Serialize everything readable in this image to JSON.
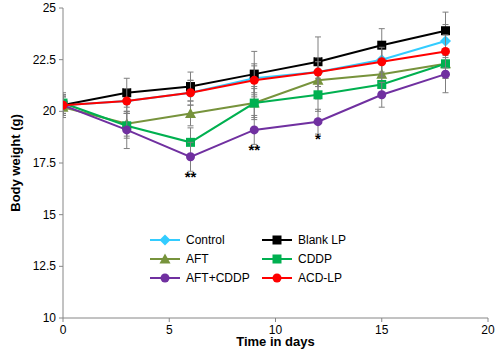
{
  "chart_data": {
    "type": "line",
    "x_label": "Time in days",
    "y_label": "Body weight (g)",
    "x": [
      0,
      3,
      6,
      9,
      12,
      15,
      18
    ],
    "xlim": [
      0,
      20
    ],
    "xticks": [
      0,
      5,
      10,
      15,
      20
    ],
    "ylim": [
      10,
      25
    ],
    "yticks": [
      10,
      12.5,
      15,
      17.5,
      20,
      22.5,
      25
    ],
    "grid": false,
    "legend": "bottom",
    "series": [
      {
        "name": "Control",
        "color": "#33ccff",
        "marker": "diamond",
        "values": [
          20.3,
          20.5,
          20.9,
          21.6,
          21.9,
          22.5,
          23.4
        ],
        "errors": [
          0.5,
          0.6,
          0.6,
          0.7,
          0.7,
          0.7,
          0.8
        ]
      },
      {
        "name": "Blank LP",
        "color": "#000000",
        "marker": "square",
        "values": [
          20.3,
          20.9,
          21.2,
          21.8,
          22.4,
          23.2,
          23.9
        ],
        "errors": [
          0.5,
          0.7,
          0.7,
          1.1,
          1.2,
          0.8,
          0.9
        ]
      },
      {
        "name": "AFT",
        "color": "#77933c",
        "marker": "triangle",
        "values": [
          20.2,
          19.4,
          19.9,
          20.4,
          21.5,
          21.8,
          22.3
        ],
        "errors": [
          0.5,
          0.6,
          0.6,
          0.8,
          0.9,
          0.6,
          0.7
        ]
      },
      {
        "name": "CDDP",
        "color": "#00b050",
        "marker": "square",
        "values": [
          20.4,
          19.3,
          18.5,
          20.4,
          20.8,
          21.3,
          22.3
        ],
        "errors": [
          0.5,
          0.6,
          0.7,
          0.7,
          0.8,
          0.6,
          0.7
        ]
      },
      {
        "name": "AFT+CDDP",
        "color": "#7030a0",
        "marker": "circle",
        "values": [
          20.3,
          19.1,
          17.8,
          19.1,
          19.5,
          20.8,
          21.8
        ],
        "errors": [
          0.5,
          0.9,
          0.7,
          0.7,
          0.6,
          0.6,
          0.9
        ]
      },
      {
        "name": "ACD-LP",
        "color": "#ff0000",
        "marker": "circle",
        "values": [
          20.3,
          20.5,
          20.9,
          21.5,
          21.9,
          22.4,
          22.9
        ],
        "errors": [
          0.4,
          0.6,
          0.6,
          0.7,
          0.7,
          0.7,
          0.8
        ]
      }
    ],
    "annotations": [
      {
        "text": "**",
        "x": 6,
        "y": 16.6
      },
      {
        "text": "**",
        "x": 9,
        "y": 17.9
      },
      {
        "text": "*",
        "x": 12,
        "y": 18.4
      }
    ]
  }
}
